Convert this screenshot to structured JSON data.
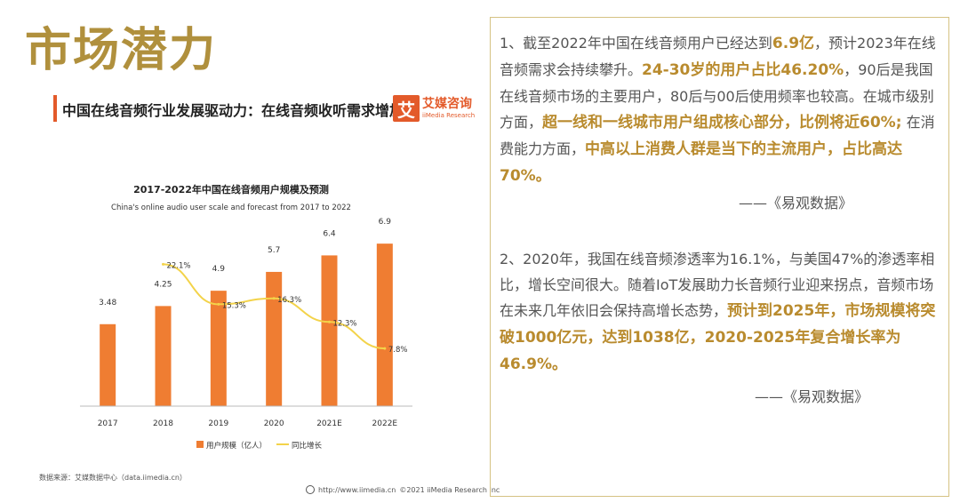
{
  "slide_title": "市场潜力",
  "panel": {
    "heading": "中国在线音频行业发展驱动力：在线音频收听需求增加",
    "brand_mark": "艾",
    "brand_cn": "艾媒咨询",
    "brand_en": "iiMedia Research",
    "source": "数据来源：艾媒数据中心（data.iimedia.cn）",
    "footer_url": "http://www.iimedia.cn",
    "footer_copy": "©2021  iiMedia Research  Inc"
  },
  "chart_data": {
    "type": "bar",
    "title": "2017-2022年中国在线音频用户规模及预测",
    "subtitle": "China's online audio user scale and forecast from 2017 to 2022",
    "categories": [
      "2017",
      "2018",
      "2019",
      "2020",
      "2021E",
      "2022E"
    ],
    "series": [
      {
        "name": "用户规模（亿人）",
        "type": "bar",
        "values": [
          3.48,
          4.25,
          4.9,
          5.7,
          6.4,
          6.9
        ],
        "labels": [
          "3.48",
          "4.25",
          "4.9",
          "5.7",
          "6.4",
          "6.9"
        ]
      },
      {
        "name": "同比增长",
        "type": "line",
        "values": [
          null,
          22.1,
          15.3,
          16.3,
          12.3,
          7.8
        ],
        "labels": [
          "",
          "22.1%",
          "15.3%",
          "16.3%",
          "12.3%",
          "7.8%"
        ]
      }
    ],
    "bar_ylim": [
      0,
      8
    ],
    "line_ylim": [
      -2,
      30
    ],
    "legend": "bottom",
    "colors": {
      "bar": "#ef7d32",
      "line": "#f3d34a"
    }
  },
  "text_panel": {
    "p1": [
      {
        "t": "1、截至2022年中国在线音频用户已经达到",
        "b": false
      },
      {
        "t": "6.9亿",
        "b": true
      },
      {
        "t": "，预计2023年在线音频需求会持续攀升。",
        "b": false
      },
      {
        "t": "24-30岁的用户占比46.20%",
        "b": true
      },
      {
        "t": "，90后是我国在线音频市场的主要用户，80后与00后使用频率也较高。在城市级别方面，",
        "b": false
      },
      {
        "t": "超一线和一线城市用户组成核心部分，比例将近60%;",
        "b": true
      },
      {
        "t": " 在消费能力方面，",
        "b": false
      },
      {
        "t": "中高以上消费人群是当下的主流用户，占比高达70%。",
        "b": true
      }
    ],
    "attribution1": "——《易观数据》",
    "p2": [
      {
        "t": "2、2020年，我国在线音频渗透率为16.1%，与美国47%的渗透率相比，增长空间很大。随着IoT发展助力长音频行业迎来拐点，音频市场在未来几年依旧会保持高增长态势，",
        "b": false
      },
      {
        "t": "预计到2025年，市场规模将突破1000亿元，达到1038亿，2020-2025年复合增长率为46.9%。",
        "b": true
      }
    ],
    "attribution2": "——《易观数据》"
  }
}
